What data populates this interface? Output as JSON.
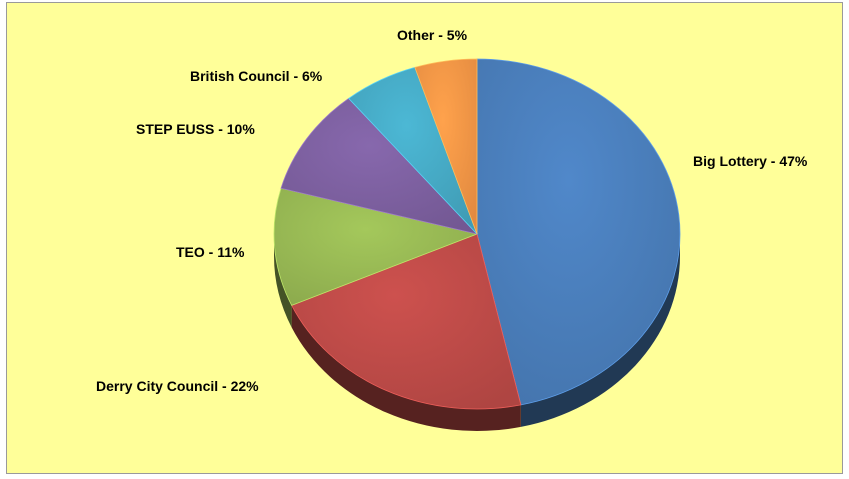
{
  "chart_data": {
    "type": "pie",
    "title": "",
    "slices": [
      {
        "label": "Big Lottery - 47%",
        "value": 47,
        "color": "#4a7ebb"
      },
      {
        "label": "Derry City Council - 22%",
        "value": 22,
        "color": "#be4b48"
      },
      {
        "label": "TEO - 11%",
        "value": 11,
        "color": "#98b954"
      },
      {
        "label": "STEP EUSS - 10%",
        "value": 10,
        "color": "#7d60a0"
      },
      {
        "label": "British Council  - 6%",
        "value": 6,
        "color": "#46aac5"
      },
      {
        "label": "Other - 5%",
        "value": 5,
        "color": "#f69646"
      }
    ],
    "start_angle_deg": 90,
    "direction": "clockwise",
    "style": "3d",
    "background_color": "#ffff99",
    "legend": "none"
  }
}
